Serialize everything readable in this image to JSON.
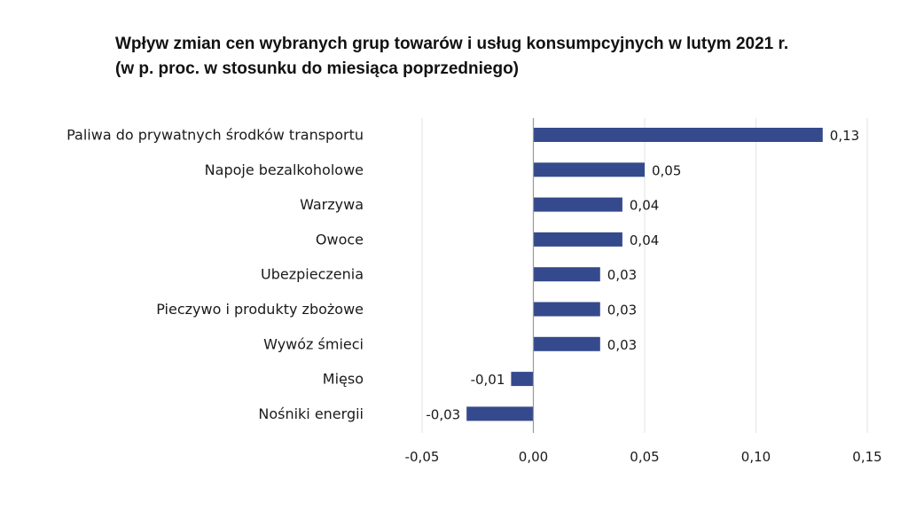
{
  "chart_data": {
    "type": "bar",
    "orientation": "horizontal",
    "title": "Wpływ zmian cen wybranych grup towarów i usług konsumpcyjnych w lutym 2021 r.",
    "subtitle": "(w p. proc. w stosunku do miesiąca poprzedniego)",
    "categories": [
      "Paliwa do prywatnych środków transportu",
      "Napoje bezalkoholowe",
      "Warzywa",
      "Owoce",
      "Ubezpieczenia",
      "Pieczywo i produkty zbożowe",
      "Wywóz śmieci",
      "Mięso",
      "Nośniki energii"
    ],
    "values": [
      0.13,
      0.05,
      0.04,
      0.04,
      0.03,
      0.03,
      0.03,
      -0.01,
      -0.03
    ],
    "value_labels": [
      "0,13",
      "0,05",
      "0,04",
      "0,04",
      "0,03",
      "0,03",
      "0,03",
      "-0,01",
      "-0,03"
    ],
    "xlim": [
      -0.05,
      0.15
    ],
    "xticks": [
      -0.05,
      0.0,
      0.05,
      0.1,
      0.15
    ],
    "xtick_labels": [
      "-0,05",
      "0,00",
      "0,05",
      "0,10",
      "0,15"
    ],
    "grid": true,
    "legend": "none",
    "colors": {
      "bar": "#354A8C",
      "grid": "#e3e3e3",
      "zero_line": "#9a9a9a"
    }
  }
}
